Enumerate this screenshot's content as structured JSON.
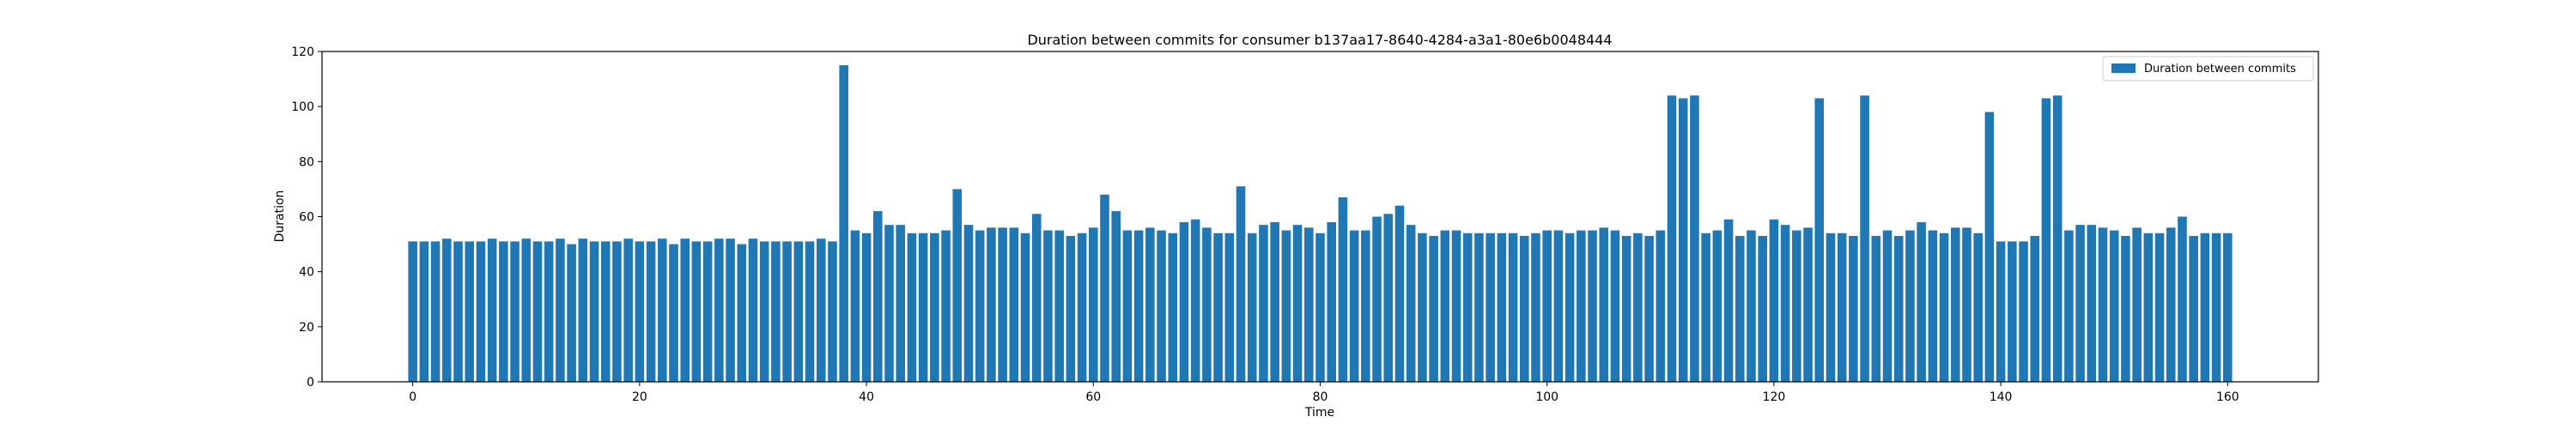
{
  "chart_data": {
    "type": "bar",
    "title": "Duration between commits for consumer b137aa17-8640-4284-a3a1-80e6b0048444",
    "xlabel": "Time",
    "ylabel": "Duration",
    "xlim": [
      -8,
      168
    ],
    "ylim": [
      0,
      120
    ],
    "xticks": [
      0,
      20,
      40,
      60,
      80,
      100,
      120,
      140,
      160
    ],
    "yticks": [
      0,
      20,
      40,
      60,
      80,
      100,
      120
    ],
    "grid": false,
    "legend_position": "top-right",
    "bar_color": "#1f77b4",
    "series": [
      {
        "name": "Duration between commits",
        "x": [
          0,
          1,
          2,
          3,
          4,
          5,
          6,
          7,
          8,
          9,
          10,
          11,
          12,
          13,
          14,
          15,
          16,
          17,
          18,
          19,
          20,
          21,
          22,
          23,
          24,
          25,
          26,
          27,
          28,
          29,
          30,
          31,
          32,
          33,
          34,
          35,
          36,
          37,
          38,
          39,
          40,
          41,
          42,
          43,
          44,
          45,
          46,
          47,
          48,
          49,
          50,
          51,
          52,
          53,
          54,
          55,
          56,
          57,
          58,
          59,
          60,
          61,
          62,
          63,
          64,
          65,
          66,
          67,
          68,
          69,
          70,
          71,
          72,
          73,
          74,
          75,
          76,
          77,
          78,
          79,
          80,
          81,
          82,
          83,
          84,
          85,
          86,
          87,
          88,
          89,
          90,
          91,
          92,
          93,
          94,
          95,
          96,
          97,
          98,
          99,
          100,
          101,
          102,
          103,
          104,
          105,
          106,
          107,
          108,
          109,
          110,
          111,
          112,
          113,
          114,
          115,
          116,
          117,
          118,
          119,
          120,
          121,
          122,
          123,
          124,
          125,
          126,
          127,
          128,
          129,
          130,
          131,
          132,
          133,
          134,
          135,
          136,
          137,
          138,
          139,
          140,
          141,
          142,
          143,
          144,
          145,
          146,
          147,
          148,
          149,
          150,
          151,
          152,
          153,
          154,
          155,
          156,
          157,
          158,
          159,
          160
        ],
        "values": [
          51,
          51,
          51,
          52,
          51,
          51,
          51,
          52,
          51,
          51,
          52,
          51,
          51,
          52,
          50,
          52,
          51,
          51,
          51,
          52,
          51,
          51,
          52,
          50,
          52,
          51,
          51,
          52,
          52,
          50,
          52,
          51,
          51,
          51,
          51,
          51,
          52,
          51,
          115,
          55,
          54,
          62,
          57,
          57,
          54,
          54,
          54,
          55,
          70,
          57,
          55,
          56,
          56,
          56,
          54,
          61,
          55,
          55,
          53,
          54,
          56,
          68,
          62,
          55,
          55,
          56,
          55,
          54,
          58,
          59,
          56,
          54,
          54,
          71,
          54,
          57,
          58,
          55,
          57,
          56,
          54,
          58,
          67,
          55,
          55,
          60,
          61,
          64,
          57,
          54,
          53,
          55,
          55,
          54,
          54,
          54,
          54,
          54,
          53,
          54,
          55,
          55,
          54,
          55,
          55,
          56,
          55,
          53,
          54,
          53,
          55,
          104,
          103,
          104,
          54,
          55,
          59,
          53,
          55,
          53,
          59,
          57,
          55,
          56,
          103,
          54,
          54,
          53,
          104,
          53,
          55,
          53,
          55,
          58,
          55,
          54,
          56,
          56,
          54,
          98,
          51,
          51,
          51,
          53,
          103,
          104,
          55,
          57,
          57,
          56,
          55,
          53,
          56,
          54,
          54,
          56,
          60,
          53,
          54,
          54,
          54
        ]
      }
    ]
  }
}
